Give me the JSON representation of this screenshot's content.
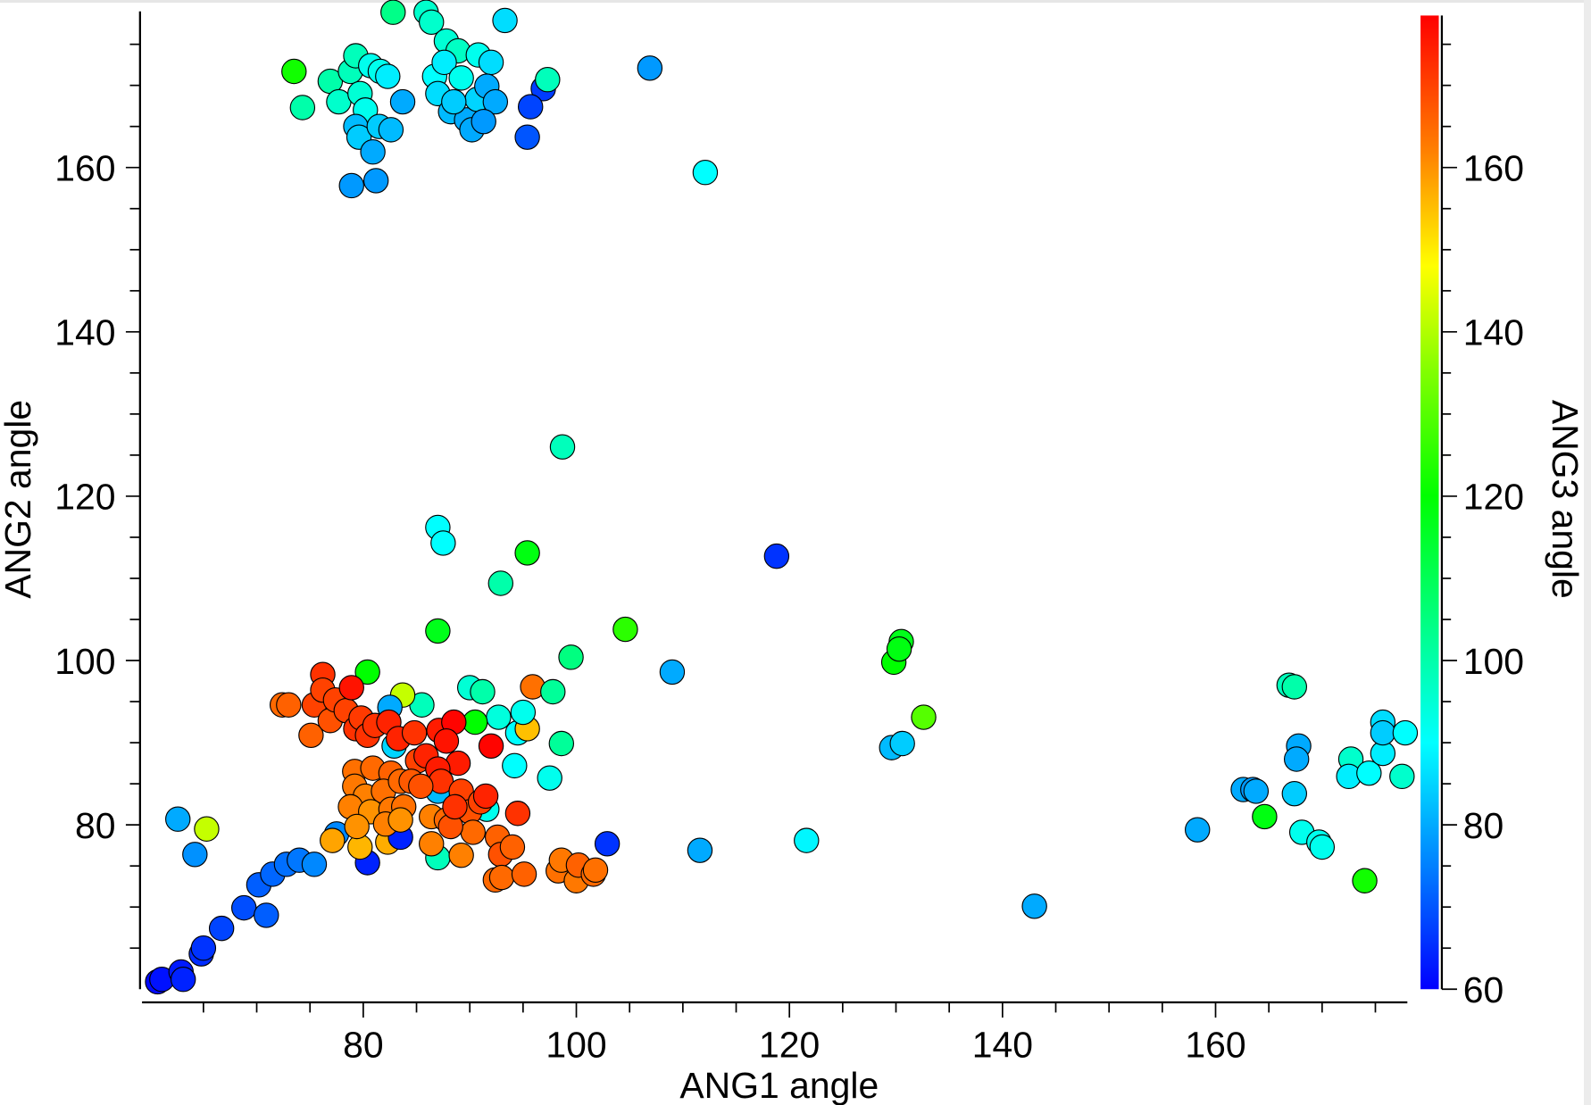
{
  "chart_data": {
    "type": "scatter",
    "xlabel": "ANG1 angle",
    "ylabel": "ANG2 angle",
    "colorbar_label": "ANG3 angle",
    "xlim": [
      59,
      178
    ],
    "ylim": [
      60,
      179
    ],
    "clim": [
      60,
      178.5
    ],
    "x_ticks": [
      80,
      100,
      120,
      140,
      160
    ],
    "y_ticks": [
      80,
      100,
      120,
      140,
      160
    ],
    "colorbar_ticks": [
      60,
      80,
      100,
      120,
      140,
      160
    ],
    "grid": false,
    "marker": "circle",
    "marker_edge_color": "#000000",
    "colormap": [
      {
        "value": 60,
        "color": "#0000ff"
      },
      {
        "value": 75,
        "color": "#0080ff"
      },
      {
        "value": 90,
        "color": "#00ffff"
      },
      {
        "value": 105,
        "color": "#00ff80"
      },
      {
        "value": 120,
        "color": "#00ff00"
      },
      {
        "value": 135,
        "color": "#80ff00"
      },
      {
        "value": 148,
        "color": "#ffff00"
      },
      {
        "value": 162,
        "color": "#ff8000"
      },
      {
        "value": 178.5,
        "color": "#ff0000"
      }
    ],
    "points": [
      [
        60.7,
        60.9,
        61
      ],
      [
        61.1,
        61.2,
        62
      ],
      [
        62.9,
        62.1,
        63
      ],
      [
        63.1,
        61.2,
        64
      ],
      [
        64.8,
        64.3,
        65
      ],
      [
        65,
        65,
        66
      ],
      [
        66.7,
        67.4,
        68
      ],
      [
        68.8,
        69.9,
        69
      ],
      [
        70.9,
        69,
        71
      ],
      [
        70.2,
        72.7,
        71
      ],
      [
        71.5,
        74,
        72
      ],
      [
        72.8,
        75.2,
        73
      ],
      [
        74,
        75.7,
        74
      ],
      [
        75.4,
        75.2,
        76
      ],
      [
        62.6,
        80.7,
        80
      ],
      [
        64.2,
        76.4,
        77
      ],
      [
        65.3,
        79.5,
        142
      ],
      [
        80.4,
        75.4,
        64
      ],
      [
        77.5,
        78.9,
        76
      ],
      [
        77.1,
        78.1,
        158
      ],
      [
        79.7,
        77.3,
        156
      ],
      [
        82.3,
        77.9,
        157
      ],
      [
        83.5,
        78.5,
        64
      ],
      [
        102.9,
        77.7,
        66
      ],
      [
        111.6,
        76.9,
        80
      ],
      [
        121.6,
        78.1,
        89
      ],
      [
        143,
        70.1,
        80
      ],
      [
        158.3,
        79.4,
        80
      ],
      [
        118.8,
        112.7,
        66
      ],
      [
        87,
        116.2,
        90
      ],
      [
        87.5,
        114.3,
        90
      ],
      [
        98.7,
        126,
        98
      ],
      [
        92.9,
        109.4,
        100
      ],
      [
        95.4,
        113.1,
        118
      ],
      [
        87,
        103.6,
        117
      ],
      [
        104.6,
        103.8,
        125
      ],
      [
        99.5,
        100.4,
        105
      ],
      [
        109,
        98.6,
        80
      ],
      [
        129.8,
        99.8,
        120
      ],
      [
        130.5,
        102.3,
        117
      ],
      [
        130.3,
        101.4,
        118
      ],
      [
        132.6,
        93.1,
        130
      ],
      [
        129.6,
        89.4,
        82
      ],
      [
        130.6,
        89.9,
        84
      ],
      [
        112.1,
        159.4,
        90
      ],
      [
        106.9,
        172.1,
        78
      ],
      [
        95.4,
        163.7,
        70
      ],
      [
        96.9,
        169.6,
        67
      ],
      [
        97.3,
        170.7,
        98
      ],
      [
        95.7,
        167.4,
        68
      ],
      [
        93.3,
        177.9,
        86
      ],
      [
        73.5,
        171.7,
        122
      ],
      [
        74.3,
        167.3,
        100
      ],
      [
        76.9,
        170.5,
        100
      ],
      [
        77.7,
        168,
        96
      ],
      [
        78.8,
        171.7,
        98
      ],
      [
        79.3,
        173.6,
        98
      ],
      [
        79.7,
        169,
        95
      ],
      [
        80.2,
        167,
        92
      ],
      [
        80.7,
        172.4,
        92
      ],
      [
        81.6,
        171.7,
        92
      ],
      [
        82.3,
        171.1,
        88
      ],
      [
        79.3,
        165,
        82
      ],
      [
        79.6,
        163.7,
        84
      ],
      [
        81.5,
        165,
        84
      ],
      [
        82.6,
        164.6,
        82
      ],
      [
        80.9,
        161.9,
        80
      ],
      [
        78.9,
        157.8,
        78
      ],
      [
        81.2,
        158.4,
        78
      ],
      [
        83.7,
        168,
        80
      ],
      [
        82.8,
        178.9,
        104
      ],
      [
        85.9,
        178.9,
        96
      ],
      [
        86.4,
        177.7,
        96
      ],
      [
        87.8,
        175.4,
        95
      ],
      [
        88.9,
        174.2,
        97
      ],
      [
        86.7,
        171.1,
        90
      ],
      [
        87.6,
        172.8,
        88
      ],
      [
        89.2,
        170.9,
        92
      ],
      [
        90.8,
        173.7,
        92
      ],
      [
        92,
        172.8,
        86
      ],
      [
        87,
        169,
        86
      ],
      [
        88.2,
        166.8,
        82
      ],
      [
        89.7,
        165.8,
        80
      ],
      [
        90.7,
        168.3,
        85
      ],
      [
        91.6,
        169.9,
        80
      ],
      [
        92.4,
        168,
        80
      ],
      [
        90.2,
        164.6,
        80
      ],
      [
        91.3,
        165.6,
        78
      ],
      [
        88.5,
        168,
        84
      ],
      [
        90,
        96.7,
        95
      ],
      [
        91.2,
        96.2,
        100
      ],
      [
        95.9,
        96.8,
        164
      ],
      [
        97.8,
        96.2,
        102
      ],
      [
        98.6,
        89.9,
        102
      ],
      [
        97.5,
        85.7,
        92
      ],
      [
        94.2,
        87.2,
        90
      ],
      [
        94.5,
        91.2,
        90
      ],
      [
        95.4,
        91.7,
        155
      ],
      [
        95,
        93.7,
        92
      ],
      [
        92.7,
        93.1,
        94
      ],
      [
        90.5,
        92.5,
        120
      ],
      [
        91.6,
        81.9,
        92
      ],
      [
        87,
        76,
        98
      ],
      [
        85.5,
        94.6,
        98
      ],
      [
        83.7,
        95.8,
        142
      ],
      [
        82.5,
        94.3,
        80
      ],
      [
        82.9,
        89.6,
        85
      ],
      [
        80.4,
        98.6,
        120
      ],
      [
        87,
        84.1,
        82
      ],
      [
        72.4,
        94.6,
        165
      ],
      [
        73,
        94.6,
        166
      ],
      [
        75.1,
        90.9,
        166
      ],
      [
        75.4,
        94.6,
        170
      ],
      [
        76.2,
        98.3,
        172
      ],
      [
        76.2,
        96.4,
        170
      ],
      [
        76.9,
        92.7,
        168
      ],
      [
        77.4,
        95.2,
        170
      ],
      [
        78.4,
        93.9,
        170
      ],
      [
        78.9,
        96.7,
        176
      ],
      [
        79.3,
        91.7,
        172
      ],
      [
        79.8,
        93,
        171
      ],
      [
        80.4,
        90.9,
        172
      ],
      [
        81.1,
        92.1,
        172
      ],
      [
        82.4,
        92.5,
        174
      ],
      [
        83.3,
        90.5,
        174
      ],
      [
        84.8,
        91.2,
        172
      ],
      [
        85.1,
        87.8,
        170
      ],
      [
        85.9,
        88.4,
        174
      ],
      [
        87.1,
        91.5,
        175
      ],
      [
        88.5,
        92.5,
        178
      ],
      [
        87.8,
        90.2,
        176
      ],
      [
        88.9,
        87.5,
        175
      ],
      [
        92,
        89.6,
        178
      ],
      [
        87,
        86.8,
        175
      ],
      [
        87.3,
        85.3,
        172
      ],
      [
        79.2,
        86.5,
        164
      ],
      [
        80.9,
        86.9,
        165
      ],
      [
        82.6,
        86.3,
        166
      ],
      [
        79.2,
        84.7,
        163
      ],
      [
        80.2,
        83.5,
        162
      ],
      [
        81.9,
        84.1,
        164
      ],
      [
        83.5,
        85.3,
        165
      ],
      [
        84.5,
        85.3,
        167
      ],
      [
        78.8,
        82.2,
        162
      ],
      [
        80.7,
        81.6,
        160
      ],
      [
        82.6,
        81.9,
        163
      ],
      [
        83.8,
        82.2,
        164
      ],
      [
        85.4,
        84.7,
        168
      ],
      [
        79.4,
        79.8,
        160
      ],
      [
        82.1,
        80.1,
        162
      ],
      [
        83.5,
        80.6,
        160
      ],
      [
        86.4,
        81,
        162
      ],
      [
        87.8,
        80.6,
        165
      ],
      [
        89.2,
        84.1,
        170
      ],
      [
        90,
        81.6,
        168
      ],
      [
        91,
        82.8,
        170
      ],
      [
        91.5,
        83.5,
        174
      ],
      [
        90.3,
        79.1,
        165
      ],
      [
        92.6,
        78.5,
        166
      ],
      [
        92.9,
        76.4,
        168
      ],
      [
        94,
        77.3,
        166
      ],
      [
        94.5,
        81.4,
        172
      ],
      [
        89.2,
        76.3,
        162
      ],
      [
        86.4,
        77.7,
        162
      ],
      [
        88.2,
        79.8,
        168
      ],
      [
        88.6,
        82.2,
        172
      ],
      [
        92.4,
        73.3,
        165
      ],
      [
        93,
        73.6,
        165
      ],
      [
        95.1,
        74,
        166
      ],
      [
        98.3,
        74.4,
        164
      ],
      [
        98.6,
        75.7,
        163
      ],
      [
        100,
        73.2,
        163
      ],
      [
        100.2,
        75.1,
        166
      ],
      [
        101.6,
        74,
        165
      ],
      [
        101.8,
        74.5,
        164
      ],
      [
        166.9,
        97,
        98
      ],
      [
        167.4,
        96.8,
        100
      ],
      [
        167.8,
        89.6,
        80
      ],
      [
        167.6,
        88,
        80
      ],
      [
        162.6,
        84.3,
        80
      ],
      [
        163.5,
        84.3,
        78
      ],
      [
        163.8,
        84.1,
        80
      ],
      [
        167.4,
        83.8,
        84
      ],
      [
        164.6,
        81,
        118
      ],
      [
        168.1,
        79.1,
        92
      ],
      [
        169.7,
        77.9,
        92
      ],
      [
        170,
        77.3,
        92
      ],
      [
        172.7,
        88,
        96
      ],
      [
        172.5,
        85.9,
        88
      ],
      [
        174.4,
        86.3,
        90
      ],
      [
        175.7,
        88.7,
        88
      ],
      [
        175.7,
        92.5,
        86
      ],
      [
        175.7,
        91.2,
        84
      ],
      [
        177.8,
        91.2,
        90
      ],
      [
        177.5,
        85.9,
        96
      ],
      [
        174,
        73.2,
        122
      ]
    ]
  }
}
